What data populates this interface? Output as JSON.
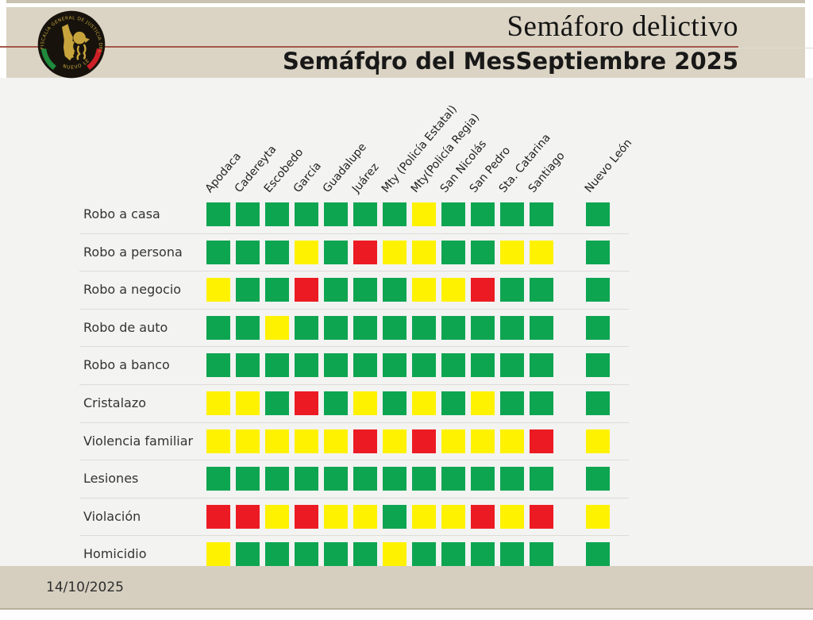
{
  "header": {
    "title": "Semáforo delictivo",
    "subtitle_left": "Semáforo del Mes",
    "subtitle_separator": "|",
    "subtitle_right": "Septiembre 2025",
    "logo": {
      "arc_text": "FISCALÍA GENERAL DE JUSTICIA DEL ESTADO",
      "bottom_text": "NUEVO LEÓN"
    }
  },
  "footer": {
    "date": "14/10/2025"
  },
  "colors": {
    "green": "#0ea551",
    "yellow": "#fff200",
    "red": "#ec1b23",
    "band_beige": "#dbd4c4",
    "header_line_red": "#a3584a"
  },
  "chart_data": {
    "type": "heatmap",
    "title": "Semáforo del Mes | Septiembre 2025",
    "period": "Septiembre 2025",
    "legend_note": "traffic-light status: green / yellow / red",
    "columns": [
      "Apodaca",
      "Cadereyta",
      "Escobedo",
      "García",
      "Guadalupe",
      "Juárez",
      "Mty (Policía Estatal)",
      "Mty(Policía Regia)",
      "San Nicolás",
      "San Pedro",
      "Sta. Catarina",
      "Santiago",
      "Nuevo León"
    ],
    "rows": [
      "Robo a casa",
      "Robo a persona",
      "Robo a negocio",
      "Robo de auto",
      "Robo a banco",
      "Cristalazo",
      "Violencia familiar",
      "Lesiones",
      "Violación",
      "Homicidio"
    ],
    "cells": [
      [
        "green",
        "green",
        "green",
        "green",
        "green",
        "green",
        "green",
        "yellow",
        "green",
        "green",
        "green",
        "green",
        "green"
      ],
      [
        "green",
        "green",
        "green",
        "yellow",
        "green",
        "red",
        "yellow",
        "yellow",
        "green",
        "green",
        "yellow",
        "yellow",
        "green"
      ],
      [
        "yellow",
        "green",
        "green",
        "red",
        "green",
        "green",
        "green",
        "yellow",
        "yellow",
        "red",
        "green",
        "green",
        "green"
      ],
      [
        "green",
        "green",
        "yellow",
        "green",
        "green",
        "green",
        "green",
        "green",
        "green",
        "green",
        "green",
        "green",
        "green"
      ],
      [
        "green",
        "green",
        "green",
        "green",
        "green",
        "green",
        "green",
        "green",
        "green",
        "green",
        "green",
        "green",
        "green"
      ],
      [
        "yellow",
        "yellow",
        "green",
        "red",
        "green",
        "yellow",
        "green",
        "yellow",
        "green",
        "yellow",
        "green",
        "green",
        "green"
      ],
      [
        "yellow",
        "yellow",
        "yellow",
        "yellow",
        "yellow",
        "red",
        "yellow",
        "red",
        "yellow",
        "yellow",
        "yellow",
        "red",
        "yellow"
      ],
      [
        "green",
        "green",
        "green",
        "green",
        "green",
        "green",
        "green",
        "green",
        "green",
        "green",
        "green",
        "green",
        "green"
      ],
      [
        "red",
        "red",
        "yellow",
        "red",
        "yellow",
        "yellow",
        "green",
        "yellow",
        "yellow",
        "red",
        "yellow",
        "red",
        "yellow"
      ],
      [
        "yellow",
        "green",
        "green",
        "green",
        "green",
        "green",
        "yellow",
        "green",
        "green",
        "green",
        "green",
        "green",
        "green"
      ]
    ]
  }
}
